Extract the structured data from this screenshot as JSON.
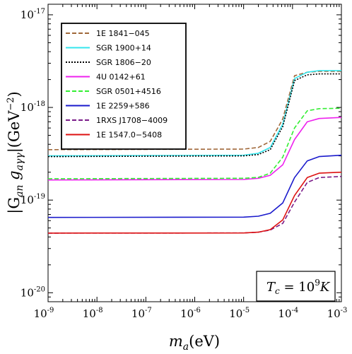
{
  "chart_data": {
    "type": "line",
    "title": "",
    "xlabel": {
      "base": "m",
      "sub": "a",
      "rest": "(eV)"
    },
    "ylabel": {
      "text": "|G",
      "sub1": "an",
      "mid": " g",
      "sub2": "aγγ",
      "rest": "|(GeV",
      "sup": "−2",
      "end": ")"
    },
    "xscale": "log",
    "yscale": "log",
    "xlim": [
      1e-09,
      0.001
    ],
    "ylim": [
      8e-21,
      1.3e-17
    ],
    "grid": false,
    "legend_position": "top-left",
    "x_ticks": [
      {
        "value": 1e-09,
        "base": "10",
        "exp": "-9"
      },
      {
        "value": 1e-08,
        "base": "10",
        "exp": "-8"
      },
      {
        "value": 1e-07,
        "base": "10",
        "exp": "-7"
      },
      {
        "value": 1e-06,
        "base": "10",
        "exp": "-6"
      },
      {
        "value": 1e-05,
        "base": "10",
        "exp": "-5"
      },
      {
        "value": 0.0001,
        "base": "10",
        "exp": "-4"
      },
      {
        "value": 0.001,
        "base": "10",
        "exp": "-3"
      }
    ],
    "y_ticks": [
      {
        "value": 1e-20,
        "base": "10",
        "exp": "-20"
      },
      {
        "value": 1e-19,
        "base": "10",
        "exp": "-19"
      },
      {
        "value": 1e-18,
        "base": "10",
        "exp": "-18"
      },
      {
        "value": 1e-17,
        "base": "10",
        "exp": "-17"
      }
    ],
    "annotation": {
      "lhs": "T",
      "sub": "c",
      "eq": " = 10",
      "sup": "9",
      "unit": "K"
    },
    "x": [
      1e-09,
      1e-05,
      2e-05,
      3.5e-05,
      6.3e-05,
      0.00011,
      0.0002,
      0.00035,
      0.001
    ],
    "series": [
      {
        "name": "1E 1841−045",
        "color": "#a0683a",
        "dash": "6,3",
        "values": [
          3.5e-19,
          3.55e-19,
          3.7e-19,
          4.3e-19,
          7.5e-19,
          2.2e-18,
          2.4e-18,
          2.45e-18,
          2.45e-18
        ]
      },
      {
        "name": "SGR 1900+14",
        "color": "#33e6ee",
        "dash": "",
        "values": [
          3e-19,
          3.05e-19,
          3.2e-19,
          3.7e-19,
          6.6e-19,
          2.05e-18,
          2.4e-18,
          2.5e-18,
          2.5e-18
        ]
      },
      {
        "name": "SGR 1806−20",
        "color": "#000000",
        "dash": "2,2",
        "values": [
          2.95e-19,
          3e-19,
          3.1e-19,
          3.5e-19,
          6.2e-19,
          1.95e-18,
          2.25e-18,
          2.3e-18,
          2.3e-18
        ]
      },
      {
        "name": "4U 0142+61",
        "color": "#ee22ee",
        "dash": "",
        "values": [
          1.65e-19,
          1.67e-19,
          1.72e-19,
          1.85e-19,
          2.4e-19,
          4.5e-19,
          7e-19,
          7.6e-19,
          7.8e-19
        ]
      },
      {
        "name": "SGR 0501+4516",
        "color": "#33ee33",
        "dash": "6,3",
        "values": [
          1.7e-19,
          1.72e-19,
          1.76e-19,
          1.95e-19,
          2.9e-19,
          6e-19,
          9.2e-19,
          9.7e-19,
          9.8e-19
        ]
      },
      {
        "name": "1E 2259+586",
        "color": "#1a1acc",
        "dash": "",
        "values": [
          6.5e-20,
          6.55e-20,
          6.7e-20,
          7.2e-20,
          9.3e-20,
          1.75e-19,
          2.65e-19,
          2.95e-19,
          3.05e-19
        ]
      },
      {
        "name": "1RXS J1708−4009",
        "color": "#7a1a88",
        "dash": "6,3",
        "values": [
          4.4e-20,
          4.42e-20,
          4.5e-20,
          4.75e-20,
          5.6e-20,
          9.5e-20,
          1.55e-19,
          1.75e-19,
          1.8e-19
        ]
      },
      {
        "name": "1E 1547.0−5408",
        "color": "#dd1111",
        "dash": "",
        "values": [
          4.4e-20,
          4.42e-20,
          4.5e-20,
          4.8e-20,
          6.1e-20,
          1.12e-19,
          1.75e-19,
          1.95e-19,
          2e-19
        ]
      }
    ]
  }
}
